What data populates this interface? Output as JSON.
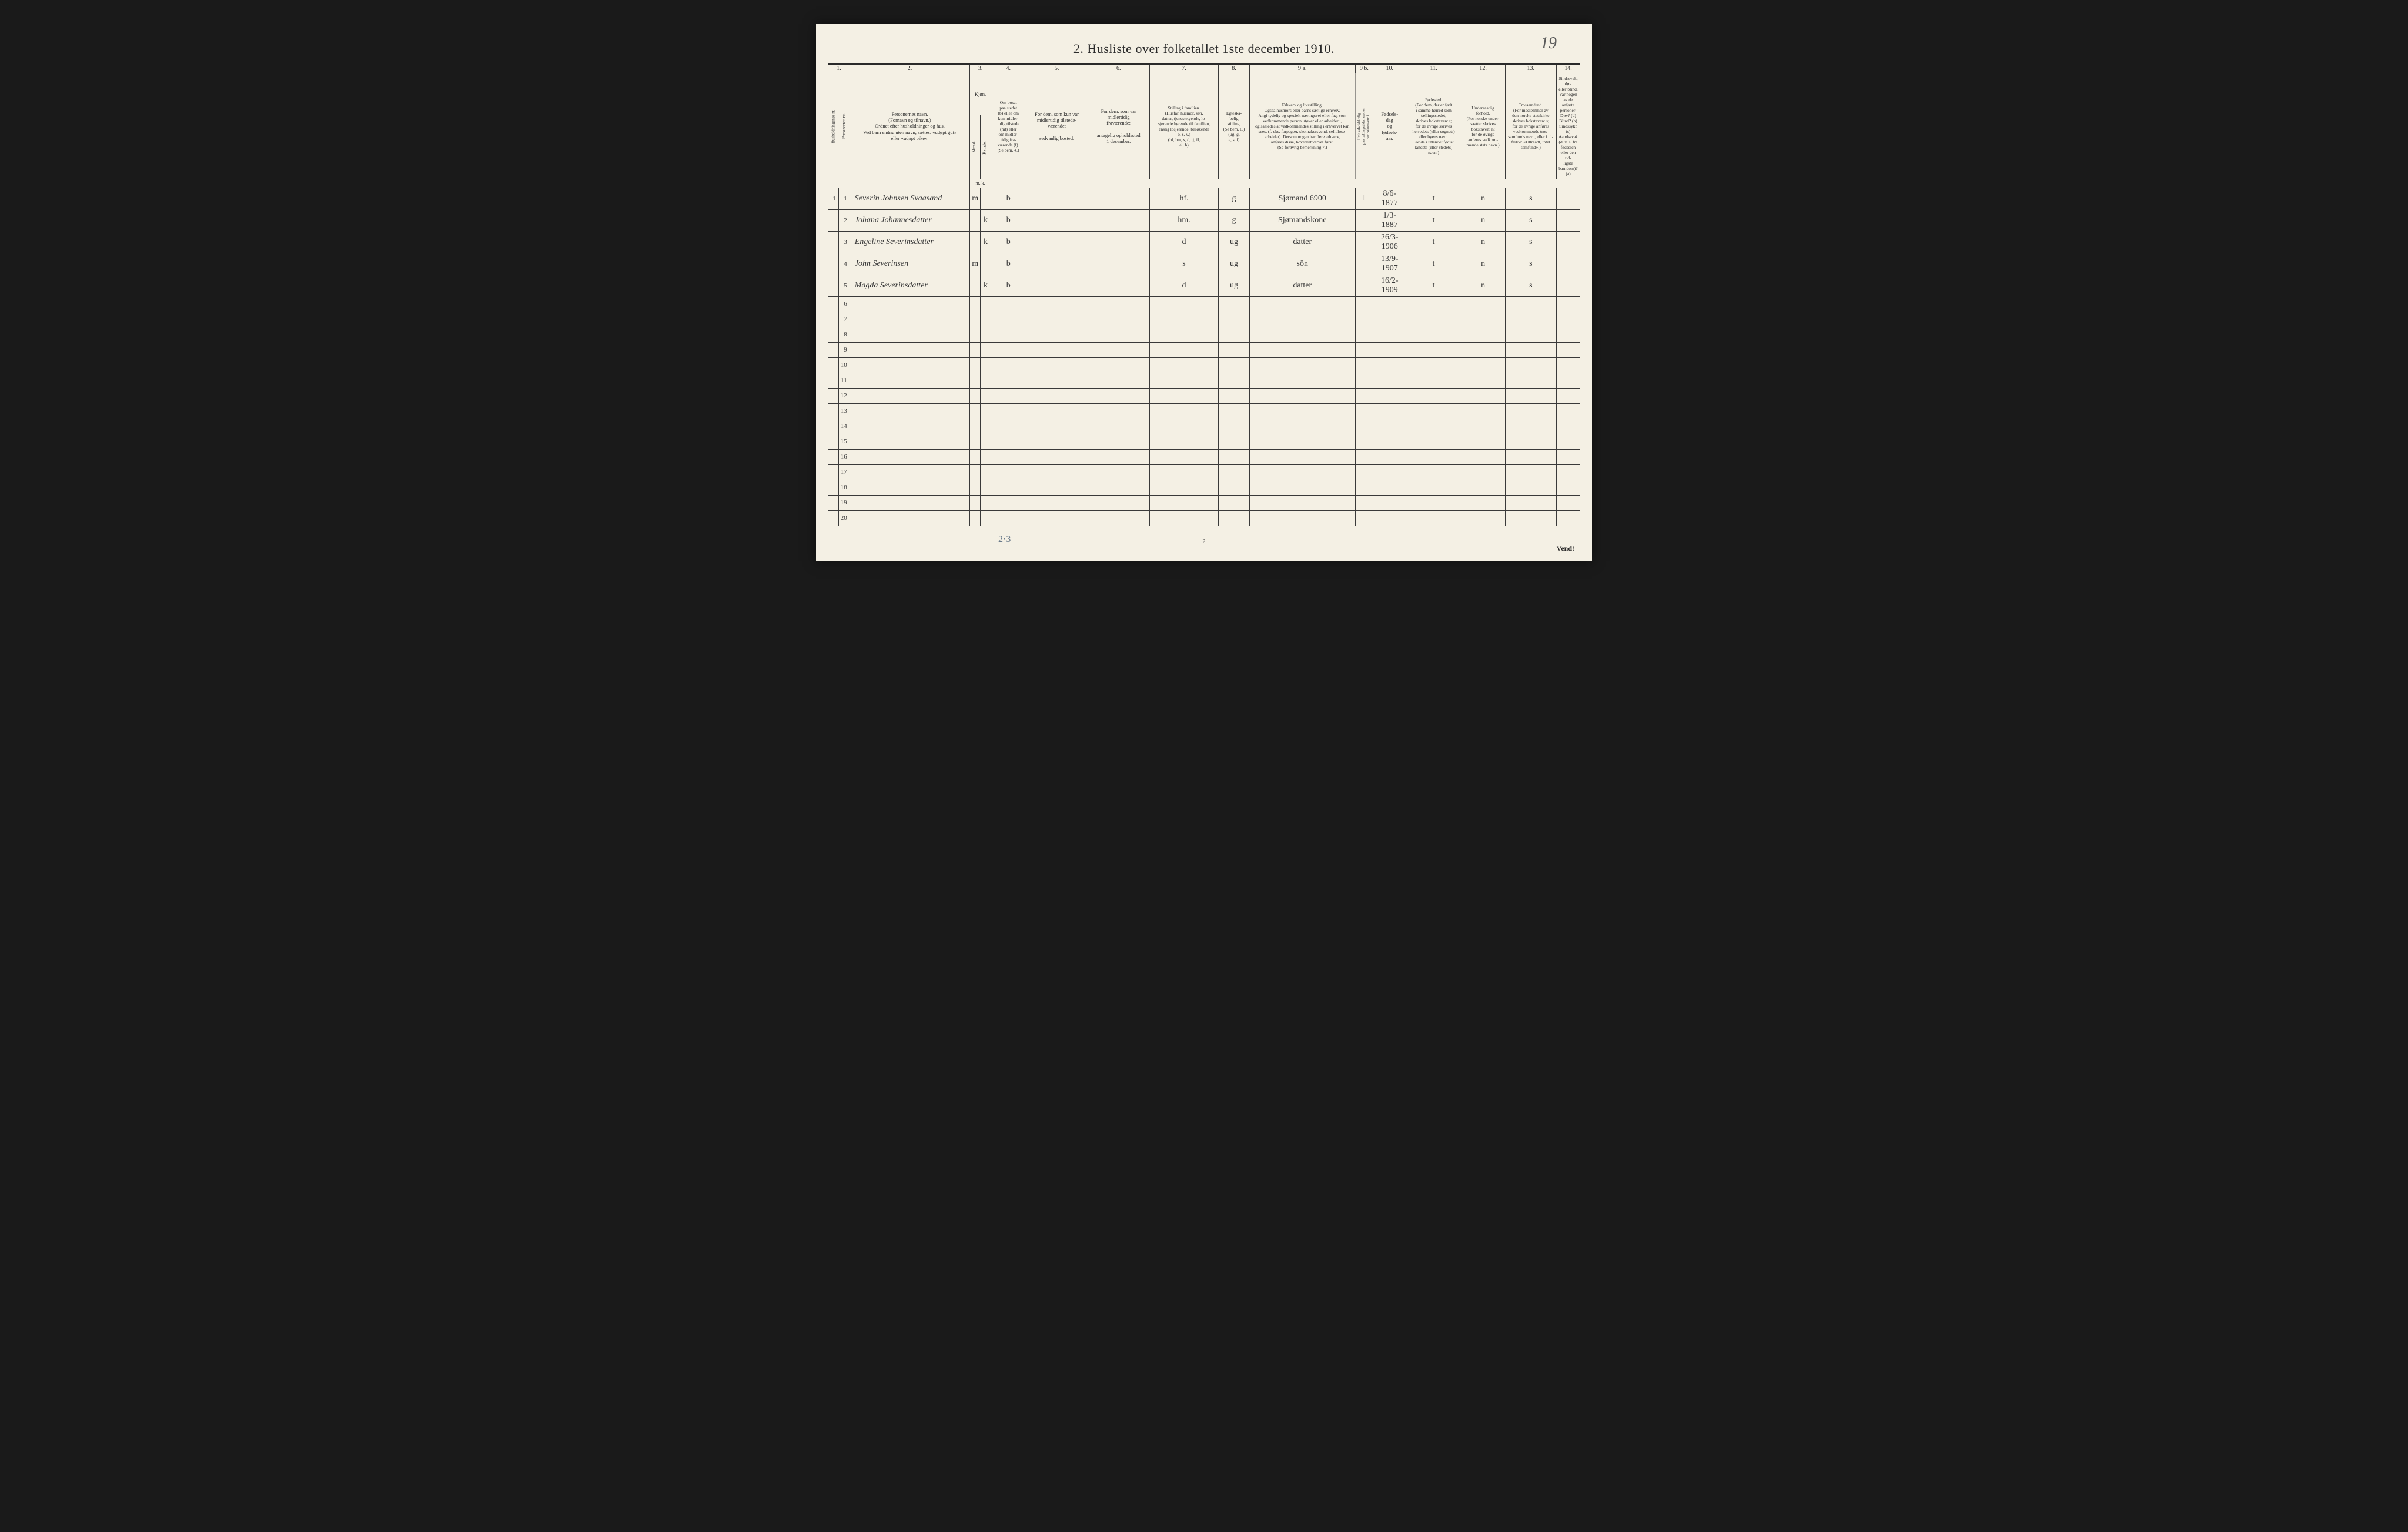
{
  "page_number_handwritten": "19",
  "title": "2.   Husliste over folketallet 1ste december 1910.",
  "columns": {
    "nums": [
      "1.",
      "2.",
      "3.",
      "4.",
      "5.",
      "6.",
      "7.",
      "8.",
      "9 a.",
      "9 b.",
      "10.",
      "11.",
      "12.",
      "13.",
      "14."
    ],
    "headers": {
      "c1a": "Husholdningenes nr.",
      "c1b": "Personernes nr.",
      "c2": "Personernes navn.\n(Fornavn og tilnavn.)\nOrdnet efter husholdninger og hus.\nVed barn endnu uten navn, sættes: «udøpt gut»\neller «udøpt pike».",
      "c3": "Kjøn.",
      "c3a": "Mænd.",
      "c3b": "Kvinder.",
      "c3foot": "m.  k.",
      "c4": "Om bosat\npaa stedet\n(b) eller om\nkun midler-\ntidig tilstede\n(mt) eller\nom midler-\ntidig fra-\nværende (f).\n(Se bem. 4.)",
      "c5": "For dem, som kun var\nmidlertidig tilstede-\nværende:\n\nsedvanlig bosted.",
      "c6": "For dem, som var\nmidlertidig\nfraværende:\n\nantagelig opholdssted\n1 december.",
      "c7": "Stilling i familien.\n(Husfar, husmor, søn,\ndatter, tjenestetyende, lo-\nsjerende hørende til familien,\nenslig losjerende, besøkende\no. s. v.)\n(hf, hm, s, d, tj, fl,\nel, b)",
      "c8": "Egteska-\nbelig\nstilling.\n(Se bem. 6.)\n(ug, g,\ne, s, f)",
      "c9a": "Erhverv og livsstilling.\nOgsaa husmors eller barns særlige erhverv.\nAngi tydelig og specielt næringsvei eller fag, som\nvedkommende person utøver eller arbeider i,\nog saaledes at vedkommendes stilling i erhvervet kan\nsees, (f. eks. forpagter, skomakersvend, cellulose-\narbeider). Dersom nogen har flere erhverv,\nanføres disse, hovederhvervet først.\n(Se forøvrig bemerkning 7.)",
      "c9b": "Hvis arbeidsledig\npaa tællingstiden sættes\nher bokstaven: l.",
      "c10": "Fødsels-\ndag\nog\nfødsels-\naar.",
      "c11": "Fødested.\n(For dem, der er født\ni samme herred som\ntællingsstedet,\nskrives bokstaven: t;\nfor de øvrige skrives\nherredets (eller sognets)\neller byens navn.\nFor de i utlandet fødte:\nlandets (eller stedets)\nnavn.)",
      "c12": "Undersaatlig\nforhold.\n(For norske under-\nsaatter skrives\nbokstaven: n;\nfor de øvrige\nanføres vedkom-\nmende stats navn.)",
      "c13": "Trossamfund.\n(For medlemmer av\nden norske statskirke\nskrives bokstaven: s;\nfor de øvrige anføres\nvedkommende tros-\nsamfunds navn, eller i til-\nfælde: «Uttraadt, intet\nsamfund».)",
      "c14": "Sindssvak, døv\neller blind.\nVar nogen av de anførte\npersoner:\nDøv?       (d)\nBlind?     (b)\nSindssyk?  (s)\nAandssvak (d. v. s. fra\nfødselen eller den tid-\nligste barndom)? (a)"
    }
  },
  "rows": [
    {
      "hh": "1",
      "pn": "1",
      "name": "Severin Johnsen Svaasand",
      "m": "m",
      "k": "",
      "b": "b",
      "c5": "",
      "c6": "",
      "c7": "hf.",
      "c8": "g",
      "c9a": "Sjømand 6900",
      "c9b": "l",
      "c10": "8/6-1877",
      "c11": "t",
      "c12": "n",
      "c13": "s",
      "c14": ""
    },
    {
      "hh": "",
      "pn": "2",
      "name": "Johana Johannesdatter",
      "m": "",
      "k": "k",
      "b": "b",
      "c5": "",
      "c6": "",
      "c7": "hm.",
      "c8": "g",
      "c9a": "Sjømandskone",
      "c9b": "",
      "c10": "1/3-1887",
      "c11": "t",
      "c12": "n",
      "c13": "s",
      "c14": ""
    },
    {
      "hh": "",
      "pn": "3",
      "name": "Engeline Severinsdatter",
      "m": "",
      "k": "k",
      "b": "b",
      "c5": "",
      "c6": "",
      "c7": "d",
      "c8": "ug",
      "c9a": "datter",
      "c9b": "",
      "c10": "26/3-1906",
      "c11": "t",
      "c12": "n",
      "c13": "s",
      "c14": ""
    },
    {
      "hh": "",
      "pn": "4",
      "name": "John Severinsen",
      "m": "m",
      "k": "",
      "b": "b",
      "c5": "",
      "c6": "",
      "c7": "s",
      "c8": "ug",
      "c9a": "sön",
      "c9b": "",
      "c10": "13/9-1907",
      "c11": "t",
      "c12": "n",
      "c13": "s",
      "c14": ""
    },
    {
      "hh": "",
      "pn": "5",
      "name": "Magda Severinsdatter",
      "m": "",
      "k": "k",
      "b": "b",
      "c5": "",
      "c6": "",
      "c7": "d",
      "c8": "ug",
      "c9a": "datter",
      "c9b": "",
      "c10": "16/2-1909",
      "c11": "t",
      "c12": "n",
      "c13": "s",
      "c14": ""
    }
  ],
  "empty_row_numbers": [
    "6",
    "7",
    "8",
    "9",
    "10",
    "11",
    "12",
    "13",
    "14",
    "15",
    "16",
    "17",
    "18",
    "19",
    "20"
  ],
  "footer_left": "2·3",
  "footer_center": "2",
  "footer_right": "Vend!",
  "colors": {
    "paper": "#f4f0e4",
    "ink": "#2a2a2a",
    "script": "#3a3a3a",
    "background": "#1a1a1a"
  },
  "col_widths_pct": {
    "c1a": 1.4,
    "c1b": 1.4,
    "c2": 16.5,
    "c3a": 1.4,
    "c3b": 1.4,
    "c4": 4.8,
    "c5": 8.5,
    "c6": 8.5,
    "c7": 9.5,
    "c8": 4.2,
    "c9a": 14.5,
    "c9b": 2.2,
    "c10": 4.5,
    "c11": 7.5,
    "c12": 6.0,
    "c13": 7.0,
    "c14": 7.2
  }
}
